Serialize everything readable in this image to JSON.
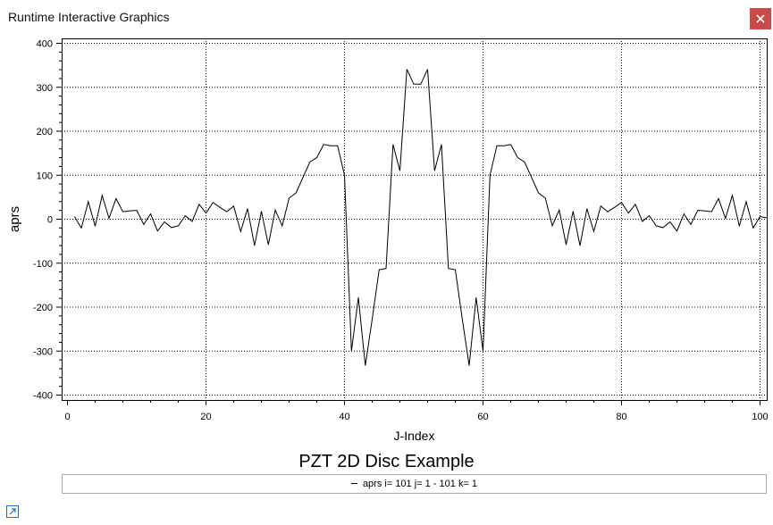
{
  "window": {
    "title": "Runtime Interactive Graphics",
    "close_icon": "close-icon"
  },
  "colors": {
    "close_bg": "#c94a4a",
    "grid": "#000000",
    "line": "#000000",
    "expand_icon": "#1f6fb5"
  },
  "chart_data": {
    "type": "line",
    "title": "PZT 2D Disc Example",
    "xlabel": "J-Index",
    "ylabel": "aprs",
    "xlim": [
      0,
      100
    ],
    "ylim": [
      -400,
      400
    ],
    "xticks": [
      0,
      20,
      40,
      60,
      80,
      100
    ],
    "yticks": [
      400,
      300,
      200,
      100,
      0,
      -100,
      -200,
      -300,
      -400
    ],
    "grid": true,
    "legend_placement": "bottom",
    "series": [
      {
        "name": "aprs i= 101 j= 1 - 101 k= 1",
        "x": [
          1,
          2,
          3,
          4,
          5,
          6,
          7,
          8,
          9,
          10,
          11,
          12,
          13,
          14,
          15,
          16,
          17,
          18,
          19,
          20,
          21,
          22,
          23,
          24,
          25,
          26,
          27,
          28,
          29,
          30,
          31,
          32,
          33,
          34,
          35,
          36,
          37,
          38,
          39,
          40,
          41,
          42,
          43,
          44,
          45,
          46,
          47,
          48,
          49,
          50,
          51,
          52,
          53,
          54,
          55,
          56,
          57,
          58,
          59,
          60,
          61,
          62,
          63,
          64,
          65,
          66,
          67,
          68,
          69,
          70,
          71,
          72,
          73,
          74,
          75,
          76,
          77,
          78,
          79,
          80,
          81,
          82,
          83,
          84,
          85,
          86,
          87,
          88,
          89,
          90,
          91,
          92,
          93,
          94,
          95,
          96,
          97,
          98,
          99,
          100,
          101
        ],
        "values": [
          6,
          -20,
          40,
          -16,
          54,
          2,
          47,
          17,
          19,
          20,
          -12,
          12,
          -27,
          -6,
          -19,
          -15,
          8,
          -5,
          34,
          14,
          38,
          27,
          17,
          30,
          -28,
          24,
          -60,
          18,
          -58,
          21,
          -15,
          48,
          60,
          95,
          130,
          140,
          170,
          167,
          167,
          100,
          -300,
          -178,
          -333,
          -227,
          -115,
          -112,
          170,
          110,
          341,
          307,
          307,
          341,
          110,
          170,
          -112,
          -115,
          -227,
          -333,
          -178,
          -300,
          100,
          167,
          167,
          170,
          140,
          130,
          95,
          60,
          48,
          -15,
          21,
          -58,
          18,
          -60,
          24,
          -28,
          30,
          17,
          27,
          38,
          14,
          34,
          -5,
          8,
          -15,
          -19,
          -6,
          -27,
          12,
          -12,
          20,
          19,
          17,
          47,
          2,
          54,
          -16,
          40,
          -20,
          6,
          3
        ]
      }
    ]
  },
  "legend": {
    "label": "aprs i= 101 j= 1 - 101 k= 1"
  },
  "footer": {
    "expand_icon": "expand-icon"
  }
}
